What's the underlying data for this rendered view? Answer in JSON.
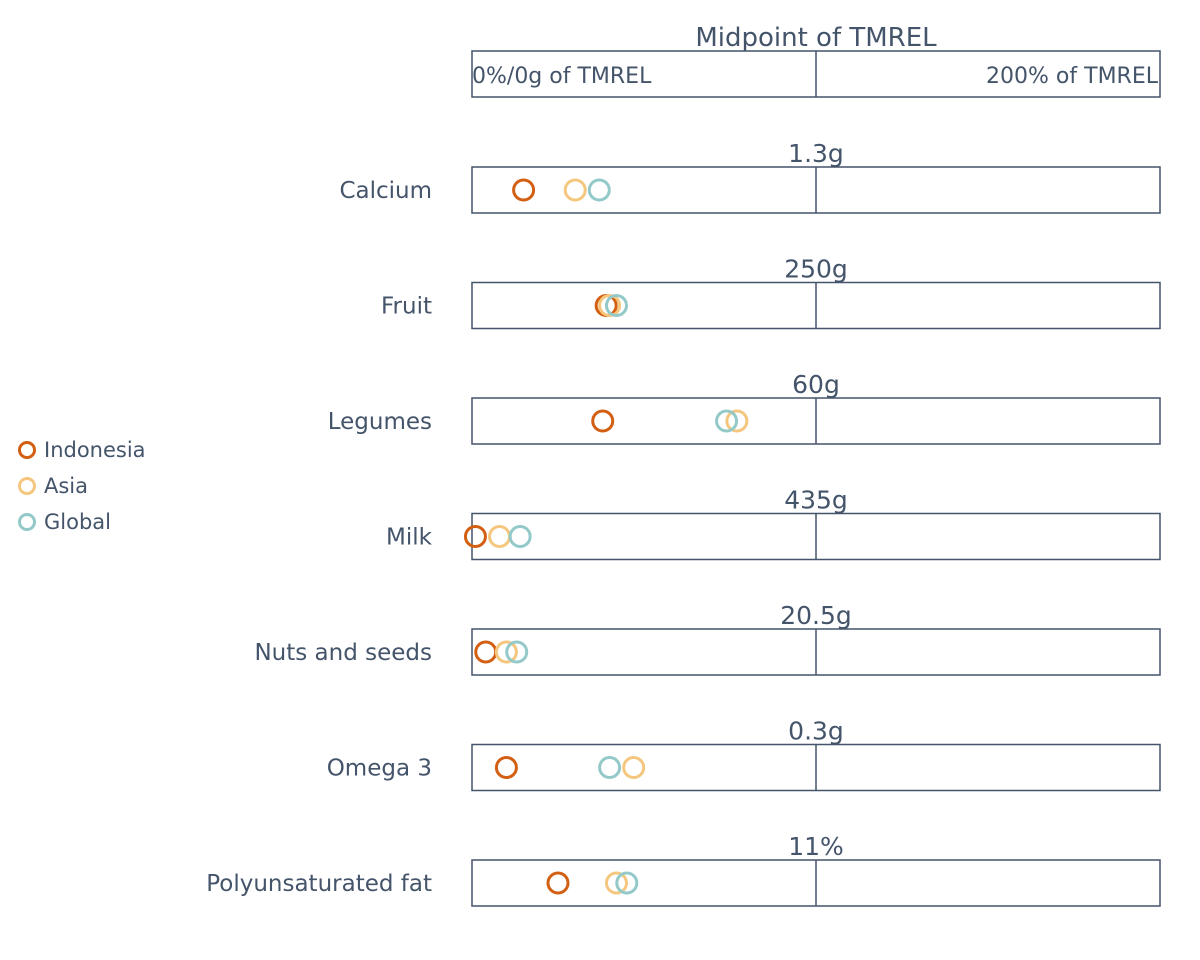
{
  "header": {
    "title": "Midpoint of TMREL",
    "left_label": "0%/0g of TMREL",
    "right_label": "200% of TMREL"
  },
  "legend": [
    {
      "name": "Indonesia",
      "color": "#d35f13"
    },
    {
      "name": "Asia",
      "color": "#f5c77e"
    },
    {
      "name": "Global",
      "color": "#93c9c8"
    }
  ],
  "chart_data": {
    "type": "scatter",
    "xlim": [
      0,
      200
    ],
    "x_unit": "% of TMREL",
    "categories": [
      "Calcium",
      "Fruit",
      "Legumes",
      "Milk",
      "Nuts and seeds",
      "Omega 3",
      "Polyunsaturated fat"
    ],
    "midpoints": [
      "1.3g",
      "250g",
      "60g",
      "435g",
      "20.5g",
      "0.3g",
      "11%"
    ],
    "series": [
      {
        "name": "Indonesia",
        "values": [
          15,
          39,
          38,
          1,
          4,
          10,
          25
        ]
      },
      {
        "name": "Asia",
        "values": [
          30,
          40,
          77,
          8,
          10,
          47,
          42
        ]
      },
      {
        "name": "Global",
        "values": [
          37,
          42,
          74,
          14,
          13,
          40,
          45
        ]
      }
    ]
  }
}
